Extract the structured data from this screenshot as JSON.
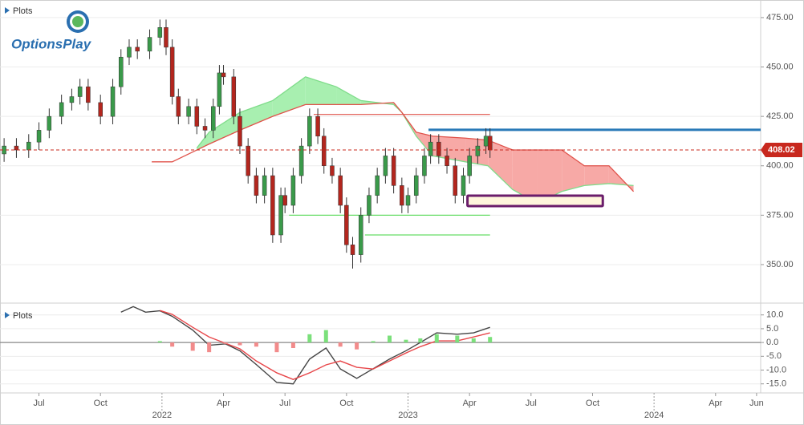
{
  "logo": "OptionsPlay",
  "chart_data": [
    {
      "type": "candlestick",
      "title": "Plots",
      "x": [
        -1.7,
        -1.1,
        -0.5,
        0,
        0.5,
        1.1,
        1.6,
        2.0,
        2.4,
        3.0,
        3.6,
        4.0,
        4.4,
        4.8,
        5.4,
        5.9,
        6.2,
        6.5,
        6.8,
        7.3,
        7.7,
        8.1,
        8.5,
        8.8,
        9.0,
        9.5,
        9.8,
        10.2,
        10.6,
        11.0,
        11.4,
        11.8,
        12.0,
        12.4,
        12.8,
        13.2,
        13.6,
        13.9,
        14.3,
        14.7,
        15.0,
        15.3,
        15.7,
        16.1,
        16.5,
        16.9,
        17.3,
        17.7,
        18.0,
        18.4,
        18.8,
        19.1,
        19.5,
        19.9,
        20.3,
        20.7,
        21.0,
        21.4,
        21.8,
        22.0
      ],
      "open": [
        406,
        410,
        408,
        412,
        418,
        425,
        432,
        435,
        440,
        432,
        425,
        440,
        455,
        460,
        458,
        465,
        470,
        460,
        435,
        425,
        430,
        420,
        418,
        430,
        447,
        445,
        425,
        410,
        395,
        385,
        395,
        365,
        385,
        380,
        395,
        410,
        425,
        415,
        400,
        395,
        380,
        360,
        355,
        375,
        385,
        395,
        405,
        390,
        380,
        385,
        395,
        405,
        412,
        405,
        400,
        385,
        395,
        405,
        410,
        415
      ],
      "high": [
        414,
        414,
        416,
        422,
        429,
        436,
        439,
        444,
        444,
        436,
        444,
        459,
        464,
        464,
        469,
        474,
        474,
        464,
        439,
        434,
        434,
        424,
        434,
        451,
        451,
        449,
        429,
        414,
        399,
        399,
        399,
        389,
        389,
        399,
        414,
        429,
        429,
        419,
        404,
        399,
        384,
        364,
        379,
        389,
        399,
        409,
        409,
        394,
        389,
        399,
        409,
        416,
        416,
        409,
        404,
        399,
        409,
        414,
        419,
        419
      ],
      "low": [
        402,
        404,
        404,
        408,
        414,
        421,
        428,
        431,
        428,
        421,
        421,
        436,
        451,
        454,
        454,
        461,
        456,
        431,
        421,
        421,
        416,
        414,
        414,
        426,
        441,
        421,
        406,
        391,
        381,
        381,
        361,
        361,
        376,
        376,
        391,
        406,
        411,
        396,
        391,
        376,
        356,
        348,
        351,
        371,
        381,
        391,
        386,
        376,
        376,
        381,
        391,
        401,
        401,
        396,
        381,
        381,
        391,
        401,
        406,
        404
      ],
      "close": [
        410,
        408,
        412,
        418,
        425,
        432,
        435,
        440,
        432,
        425,
        440,
        455,
        460,
        458,
        465,
        470,
        460,
        435,
        425,
        430,
        420,
        418,
        430,
        447,
        445,
        425,
        410,
        395,
        385,
        395,
        365,
        385,
        380,
        395,
        410,
        425,
        415,
        400,
        395,
        380,
        360,
        355,
        375,
        385,
        395,
        405,
        390,
        380,
        385,
        395,
        405,
        412,
        405,
        400,
        385,
        395,
        405,
        410,
        415,
        408
      ],
      "colors": {
        "up": "#3a9a4a",
        "down": "#b3261e"
      },
      "xlim": [
        -1.9,
        35.2
      ],
      "ylim": [
        330.5,
        483.9
      ],
      "yticks": [
        {
          "value": 475,
          "label": "475.00"
        },
        {
          "value": 450,
          "label": "450.00"
        },
        {
          "value": 425,
          "label": "425.00"
        },
        {
          "value": 400,
          "label": "400.00"
        },
        {
          "value": 375,
          "label": "375.00"
        },
        {
          "value": 350,
          "label": "350.00"
        }
      ],
      "grid": true,
      "cloud": {
        "x": [
          5.5,
          6.5,
          7.7,
          8.3,
          9.8,
          11.4,
          13.0,
          14.5,
          15.7,
          17.3,
          17.7,
          18.4,
          19.2,
          20.8,
          21.9,
          23.1,
          24.3,
          25.5,
          26.6,
          27.8,
          29.0
        ],
        "span_a": [
          null,
          null,
          409,
          417,
          427,
          433,
          445,
          440,
          433,
          431,
          427,
          415,
          405,
          402,
          400,
          388,
          381,
          387,
          390,
          391,
          390
        ],
        "span_b": [
          402,
          402,
          408,
          411,
          418,
          425,
          431,
          431,
          431,
          432,
          427,
          417,
          415,
          414,
          413,
          408,
          408,
          408,
          400,
          400,
          387
        ],
        "color_a": "#7fdc8a",
        "color_b": "#e0524a",
        "fill_a": "#a8efb0",
        "fill_b": "#f7a9a6"
      },
      "lines": [
        {
          "x": [
            13.4,
            22.0
          ],
          "value": 426,
          "color": "#e0524a",
          "width": 1.2
        },
        {
          "x": [
            12.2,
            22.0
          ],
          "value": 375,
          "color": "#66dd66",
          "width": 1.2
        },
        {
          "x": [
            15.9,
            22.0
          ],
          "value": 365,
          "color": "#66dd66",
          "width": 1.2
        },
        {
          "x": [
            19.0,
            35.2
          ],
          "value": 418.2,
          "color": "#2a7ab8",
          "width": 3
        }
      ],
      "current_price": {
        "value": 408.02,
        "color": "#c8281e"
      },
      "zone": {
        "x": [
          20.9,
          27.5
        ],
        "range": [
          379.6,
          384.9
        ],
        "color": "#6b1d6b",
        "fill": "#fff6dc"
      }
    },
    {
      "type": "macd",
      "title": "Plots",
      "x": [
        4.0,
        4.6,
        5.2,
        5.9,
        6.5,
        7.5,
        8.3,
        9.1,
        9.8,
        10.6,
        11.6,
        12.4,
        13.2,
        14.0,
        14.7,
        15.5,
        16.3,
        17.1,
        17.9,
        18.6,
        19.4,
        20.4,
        21.2,
        22.0
      ],
      "series": [
        {
          "name": "MACD",
          "color": "#444444",
          "values": [
            11,
            13,
            11,
            11.5,
            9.5,
            4.5,
            -1,
            -0.5,
            -3,
            -8,
            -14.5,
            -15,
            -6,
            -2,
            -9.6,
            -13,
            -9.5,
            -6,
            -3,
            0,
            3.5,
            3,
            3.5,
            5.5
          ]
        },
        {
          "name": "Signal",
          "color": "#e8474a",
          "values": [
            null,
            null,
            null,
            11.6,
            10.2,
            5.5,
            2,
            -0.3,
            -2.3,
            -6.7,
            -11,
            -13.4,
            -11,
            -8.1,
            -6.7,
            -9,
            -9.6,
            -6.7,
            -3.8,
            -1.5,
            0.6,
            0.6,
            2,
            3.5
          ]
        },
        {
          "name": "Histogram",
          "color": "#7be07b",
          "negative_color": "#f28b8b",
          "values": [
            null,
            null,
            null,
            0.5,
            -1.5,
            -3,
            -3.5,
            -0.5,
            -1,
            -1.5,
            -3.5,
            -2,
            3,
            4.5,
            -1.5,
            -2.5,
            0.5,
            2.5,
            1,
            1.5,
            3,
            2.5,
            1.5,
            2
          ]
        }
      ],
      "xlim": [
        -1.9,
        35.2
      ],
      "ylim": [
        -17.7,
        13.7
      ],
      "yticks": [
        {
          "value": 10,
          "label": "10.0"
        },
        {
          "value": 5,
          "label": "5.0"
        },
        {
          "value": 0,
          "label": "0.0"
        },
        {
          "value": -5,
          "label": "-5.0"
        },
        {
          "value": -10,
          "label": "-10.0"
        },
        {
          "value": -15,
          "label": "-15.0"
        }
      ],
      "xticks": [
        {
          "value": 0,
          "label": "Jul"
        },
        {
          "value": 3,
          "label": "Oct"
        },
        {
          "value": 9,
          "label": "Apr"
        },
        {
          "value": 12,
          "label": "Jul"
        },
        {
          "value": 15,
          "label": "Oct"
        },
        {
          "value": 21,
          "label": "Apr"
        },
        {
          "value": 24,
          "label": "Jul"
        },
        {
          "value": 27,
          "label": "Oct"
        },
        {
          "value": 33,
          "label": "Apr"
        },
        {
          "value": 35,
          "label": "Jun"
        }
      ],
      "year_ticks": [
        {
          "value": 6,
          "label": "2022"
        },
        {
          "value": 18,
          "label": "2023"
        },
        {
          "value": 30,
          "label": "2024"
        }
      ]
    }
  ]
}
